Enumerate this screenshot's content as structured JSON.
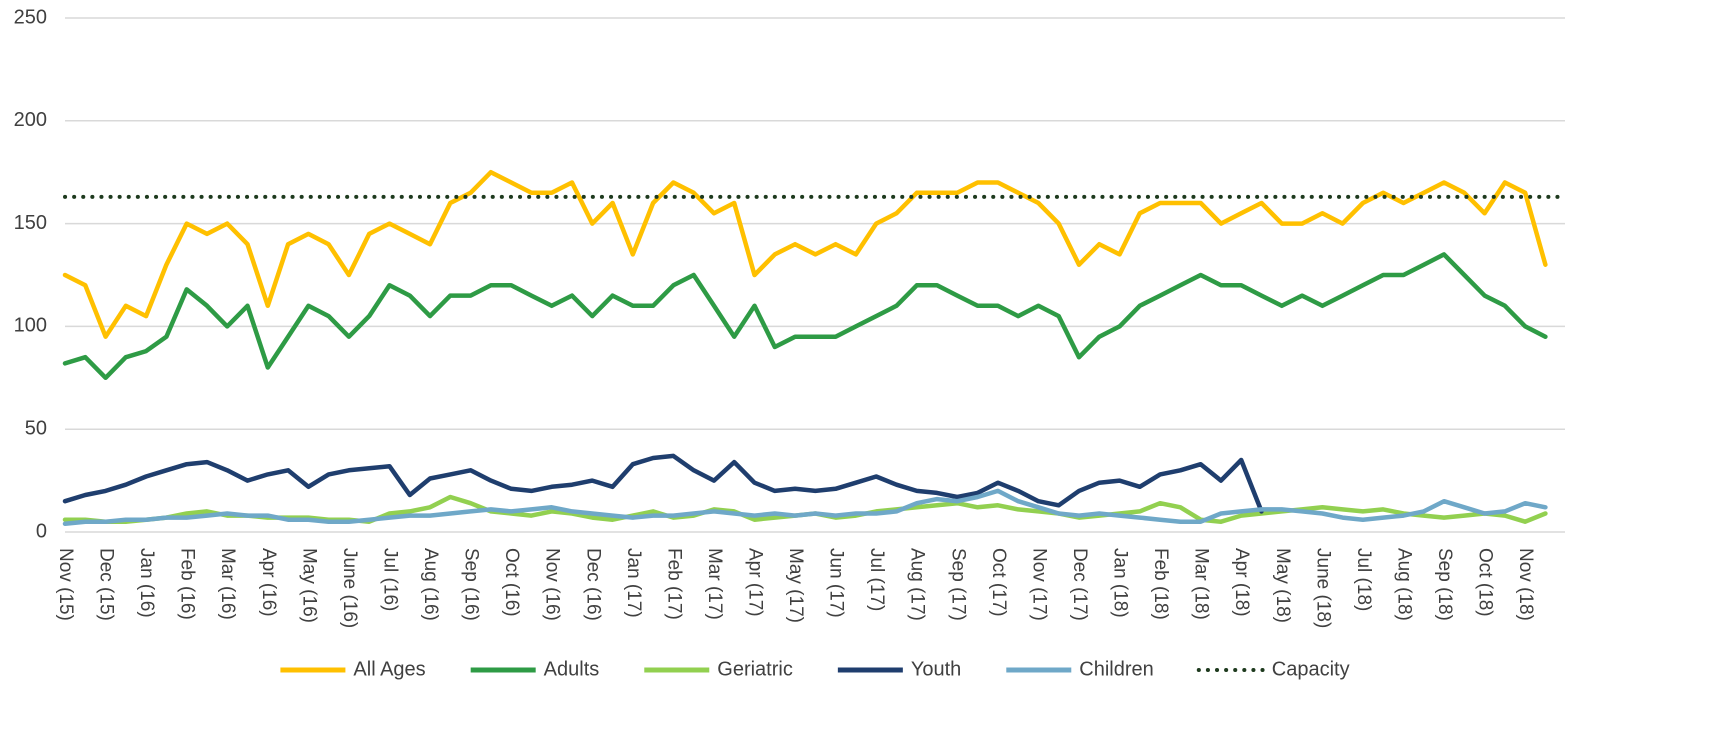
{
  "chart_data": {
    "type": "line",
    "categories": [
      "Nov (15)",
      null,
      "Dec (15)",
      null,
      "Jan (16)",
      null,
      "Feb (16)",
      null,
      "Mar (16)",
      null,
      "Apr (16)",
      null,
      "May (16)",
      null,
      "June (16)",
      null,
      "Jul (16)",
      null,
      "Aug (16)",
      null,
      "Sep (16)",
      null,
      "Oct (16)",
      null,
      "Nov (16)",
      null,
      "Dec (16)",
      null,
      "Jan (17)",
      null,
      "Feb (17)",
      null,
      "Mar (17)",
      null,
      "Apr (17)",
      null,
      "May (17)",
      null,
      "Jun (17)",
      null,
      "Jul (17)",
      null,
      "Aug (17)",
      null,
      "Sep (17)",
      null,
      "Oct (17)",
      null,
      "Nov (17)",
      null,
      "Dec (17)",
      null,
      "Jan (18)",
      null,
      "Feb (18)",
      null,
      "Mar (18)",
      null,
      "Apr (18)",
      null,
      "May (18)",
      null,
      "June (18)",
      null,
      "Jul (18)",
      null,
      "Aug (18)",
      null,
      "Sep (18)",
      null,
      "Oct (18)",
      null,
      "Nov (18)",
      null
    ],
    "series": [
      {
        "name": "All Ages",
        "color": "#FFC000",
        "values": [
          125,
          120,
          95,
          110,
          105,
          130,
          150,
          145,
          150,
          140,
          110,
          140,
          145,
          140,
          125,
          145,
          150,
          145,
          140,
          160,
          165,
          175,
          170,
          165,
          165,
          170,
          150,
          160,
          135,
          160,
          170,
          165,
          155,
          160,
          125,
          135,
          140,
          135,
          140,
          135,
          150,
          155,
          165,
          165,
          165,
          170,
          170,
          165,
          160,
          150,
          130,
          140,
          135,
          155,
          160,
          160,
          160,
          150,
          155,
          160,
          150,
          150,
          155,
          150,
          160,
          165,
          160,
          165,
          170,
          165,
          155,
          170,
          165,
          130
        ]
      },
      {
        "name": "Adults",
        "color": "#2E9B45",
        "values": [
          82,
          85,
          75,
          85,
          88,
          95,
          118,
          110,
          100,
          110,
          80,
          95,
          110,
          105,
          95,
          105,
          120,
          115,
          105,
          115,
          115,
          120,
          120,
          115,
          110,
          115,
          105,
          115,
          110,
          110,
          120,
          125,
          110,
          95,
          110,
          90,
          95,
          95,
          95,
          100,
          105,
          110,
          120,
          120,
          115,
          110,
          110,
          105,
          110,
          105,
          85,
          95,
          100,
          110,
          115,
          120,
          125,
          120,
          120,
          115,
          110,
          115,
          110,
          115,
          120,
          125,
          125,
          130,
          135,
          125,
          115,
          110,
          100,
          95
        ]
      },
      {
        "name": "Geriatric",
        "color": "#92D050",
        "values": [
          6,
          6,
          5,
          5,
          6,
          7,
          9,
          10,
          8,
          8,
          7,
          7,
          7,
          6,
          6,
          5,
          9,
          10,
          12,
          17,
          14,
          10,
          9,
          8,
          10,
          9,
          7,
          6,
          8,
          10,
          7,
          8,
          11,
          10,
          6,
          7,
          8,
          9,
          7,
          8,
          10,
          11,
          12,
          13,
          14,
          12,
          13,
          11,
          10,
          9,
          7,
          8,
          9,
          10,
          14,
          12,
          6,
          5,
          8,
          9,
          10,
          11,
          12,
          11,
          10,
          11,
          9,
          8,
          7,
          8,
          9,
          8,
          5,
          9
        ]
      },
      {
        "name": "Youth",
        "color": "#1F3E6E",
        "values": [
          15,
          18,
          20,
          23,
          27,
          30,
          33,
          34,
          30,
          25,
          28,
          30,
          22,
          28,
          30,
          31,
          32,
          18,
          26,
          28,
          30,
          25,
          21,
          20,
          22,
          23,
          25,
          22,
          33,
          36,
          37,
          30,
          25,
          34,
          24,
          20,
          21,
          20,
          21,
          24,
          27,
          23,
          20,
          19,
          17,
          19,
          24,
          20,
          15,
          13,
          20,
          24,
          25,
          22,
          28,
          30,
          33,
          25,
          35,
          10,
          null,
          null,
          null,
          null,
          null,
          null,
          null,
          null,
          null,
          null,
          null,
          null,
          null,
          null
        ]
      },
      {
        "name": "Children",
        "color": "#6FA8C8",
        "values": [
          4,
          5,
          5,
          6,
          6,
          7,
          7,
          8,
          9,
          8,
          8,
          6,
          6,
          5,
          5,
          6,
          7,
          8,
          8,
          9,
          10,
          11,
          10,
          11,
          12,
          10,
          9,
          8,
          7,
          8,
          8,
          9,
          10,
          9,
          8,
          9,
          8,
          9,
          8,
          9,
          9,
          10,
          14,
          16,
          15,
          17,
          20,
          15,
          12,
          9,
          8,
          9,
          8,
          7,
          6,
          5,
          5,
          9,
          10,
          11,
          11,
          10,
          9,
          7,
          6,
          7,
          8,
          10,
          15,
          12,
          9,
          10,
          14,
          12
        ]
      }
    ],
    "reference_line": {
      "name": "Capacity",
      "value": 163,
      "color": "#1E3A1E"
    },
    "ylim": [
      0,
      250
    ],
    "yticks": [
      0,
      50,
      100,
      150,
      200,
      250
    ],
    "grid": true,
    "legend": "bottom"
  }
}
